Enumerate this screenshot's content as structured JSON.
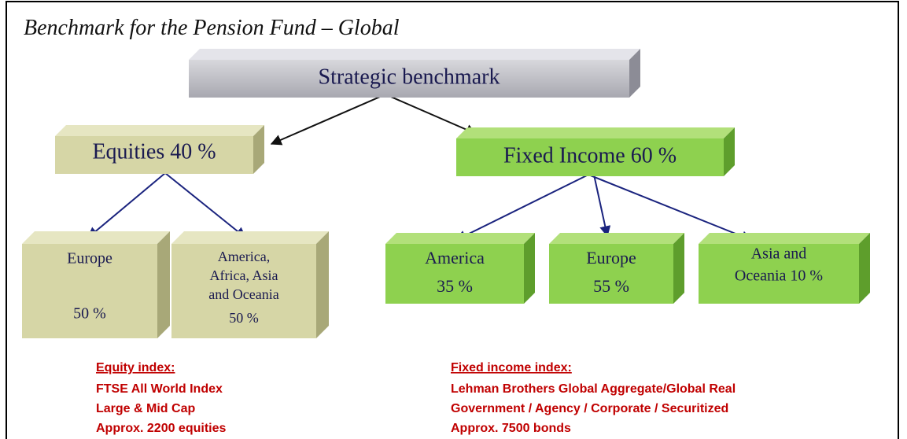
{
  "title": "Benchmark for the Pension Fund – Global",
  "nodes": [
    {
      "lines": [
        "Strategic benchmark"
      ]
    },
    {
      "lines": [
        "Equities 40 %"
      ]
    },
    {
      "lines": [
        "Fixed Income 60 %"
      ]
    },
    {
      "lines": [
        "Europe",
        "50 %"
      ]
    },
    {
      "lines": [
        "America,",
        "Africa, Asia",
        "and Oceania",
        "50 %"
      ]
    },
    {
      "lines": [
        "America",
        "35 %"
      ]
    },
    {
      "lines": [
        "Europe",
        "55 %"
      ]
    },
    {
      "lines": [
        "Asia and",
        "Oceania 10 %"
      ]
    }
  ],
  "notes": [
    {
      "heading": "Equity index:",
      "lines": [
        "FTSE All World Index",
        "Large & Mid Cap",
        "Approx. 2200 equities"
      ]
    },
    {
      "heading": "Fixed income index:",
      "lines": [
        "Lehman Brothers Global Aggregate/Global Real",
        "Government / Agency / Corporate / Securitized",
        "Approx. 7500 bonds"
      ]
    }
  ]
}
